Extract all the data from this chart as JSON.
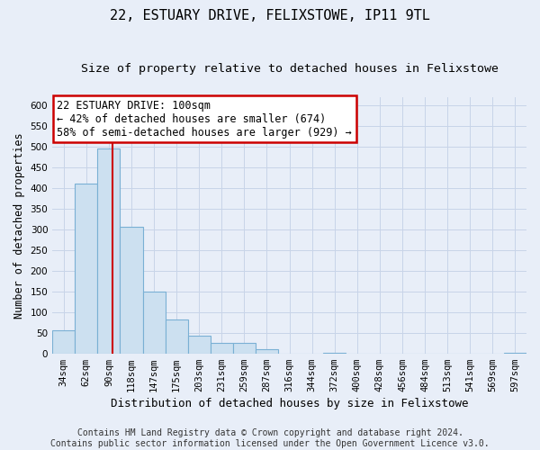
{
  "title": "22, ESTUARY DRIVE, FELIXSTOWE, IP11 9TL",
  "subtitle": "Size of property relative to detached houses in Felixstowe",
  "xlabel": "Distribution of detached houses by size in Felixstowe",
  "ylabel": "Number of detached properties",
  "bar_labels": [
    "34sqm",
    "62sqm",
    "90sqm",
    "118sqm",
    "147sqm",
    "175sqm",
    "203sqm",
    "231sqm",
    "259sqm",
    "287sqm",
    "316sqm",
    "344sqm",
    "372sqm",
    "400sqm",
    "428sqm",
    "456sqm",
    "484sqm",
    "513sqm",
    "541sqm",
    "569sqm",
    "597sqm"
  ],
  "bar_values": [
    57,
    410,
    495,
    307,
    150,
    82,
    43,
    25,
    25,
    10,
    0,
    0,
    2,
    0,
    0,
    0,
    0,
    0,
    0,
    0,
    2
  ],
  "bar_color": "#cce0f0",
  "bar_edge_color": "#7ab0d4",
  "vline_x_index": 2,
  "vline_color": "#cc0000",
  "ylim": [
    0,
    620
  ],
  "yticks": [
    0,
    50,
    100,
    150,
    200,
    250,
    300,
    350,
    400,
    450,
    500,
    550,
    600
  ],
  "annotation_title": "22 ESTUARY DRIVE: 100sqm",
  "annotation_line1": "← 42% of detached houses are smaller (674)",
  "annotation_line2": "58% of semi-detached houses are larger (929) →",
  "annotation_box_color": "#ffffff",
  "annotation_box_edge": "#cc0000",
  "footer_line1": "Contains HM Land Registry data © Crown copyright and database right 2024.",
  "footer_line2": "Contains public sector information licensed under the Open Government Licence v3.0.",
  "bg_color": "#e8eef8",
  "plot_bg_color": "#e8eef8",
  "grid_color": "#c8d4e8",
  "title_fontsize": 11,
  "subtitle_fontsize": 9.5,
  "xlabel_fontsize": 9,
  "ylabel_fontsize": 8.5,
  "tick_fontsize": 7.5,
  "annotation_fontsize": 8.5,
  "footer_fontsize": 7
}
